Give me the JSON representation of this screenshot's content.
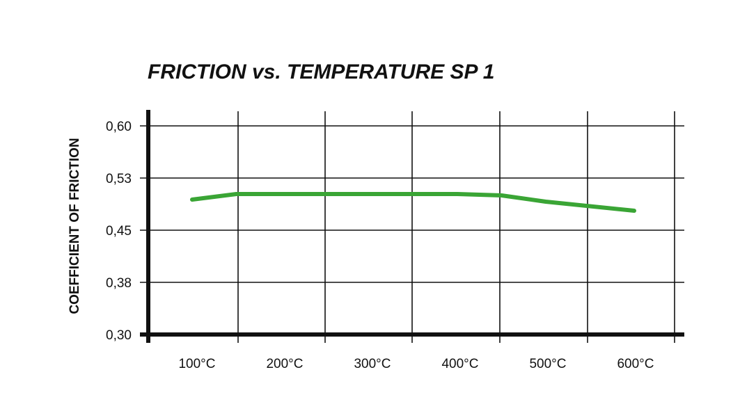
{
  "chart_data": {
    "type": "line",
    "title": "FRICTION vs. TEMPERATURE SP 1",
    "xlabel": "",
    "ylabel": "COEFFICIENT OF FRICTION",
    "categories": [
      "100°C",
      "200°C",
      "300°C",
      "400°C",
      "500°C",
      "600°C"
    ],
    "y_ticks": [
      "0,60",
      "0,53",
      "0,45",
      "0,38",
      "0,30"
    ],
    "ylim": [
      0.3,
      0.6
    ],
    "grid": true,
    "series": [
      {
        "color": "#3aa535",
        "points": [
          {
            "x": 100,
            "y": 0.494
          },
          {
            "x": 150,
            "y": 0.502
          },
          {
            "x": 200,
            "y": 0.502
          },
          {
            "x": 300,
            "y": 0.502
          },
          {
            "x": 400,
            "y": 0.502
          },
          {
            "x": 450,
            "y": 0.5
          },
          {
            "x": 500,
            "y": 0.491
          },
          {
            "x": 600,
            "y": 0.478
          }
        ]
      }
    ]
  }
}
